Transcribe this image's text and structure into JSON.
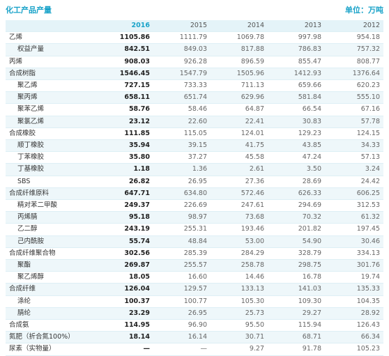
{
  "header": {
    "title": "化工产品产量",
    "unit": "单位：万吨"
  },
  "columns": [
    "2016",
    "2015",
    "2014",
    "2013",
    "2012"
  ],
  "rows": [
    {
      "name": "乙烯",
      "sub": false,
      "values": [
        "1105.86",
        "1111.79",
        "1069.78",
        "997.98",
        "954.18"
      ]
    },
    {
      "name": "权益产量",
      "sub": true,
      "values": [
        "842.51",
        "849.03",
        "817.88",
        "786.83",
        "757.32"
      ]
    },
    {
      "name": "丙烯",
      "sub": false,
      "values": [
        "908.03",
        "926.28",
        "896.59",
        "855.47",
        "808.77"
      ]
    },
    {
      "name": "合成树脂",
      "sub": false,
      "values": [
        "1546.45",
        "1547.79",
        "1505.96",
        "1412.93",
        "1376.64"
      ]
    },
    {
      "name": "聚乙烯",
      "sub": true,
      "values": [
        "727.15",
        "733.33",
        "711.13",
        "659.66",
        "620.23"
      ]
    },
    {
      "name": "聚丙烯",
      "sub": true,
      "values": [
        "658.11",
        "651.74",
        "629.96",
        "581.84",
        "555.10"
      ]
    },
    {
      "name": "聚苯乙烯",
      "sub": true,
      "values": [
        "58.76",
        "58.46",
        "64.87",
        "66.54",
        "67.16"
      ]
    },
    {
      "name": "聚氯乙烯",
      "sub": true,
      "values": [
        "23.12",
        "22.60",
        "22.41",
        "30.83",
        "57.78"
      ]
    },
    {
      "name": "合成橡胶",
      "sub": false,
      "values": [
        "111.85",
        "115.05",
        "124.01",
        "129.23",
        "124.15"
      ]
    },
    {
      "name": "顺丁橡胶",
      "sub": true,
      "values": [
        "35.94",
        "39.15",
        "41.75",
        "43.85",
        "34.33"
      ]
    },
    {
      "name": "丁苯橡胶",
      "sub": true,
      "values": [
        "35.80",
        "37.27",
        "45.58",
        "47.24",
        "57.13"
      ]
    },
    {
      "name": "丁基橡胶",
      "sub": true,
      "values": [
        "1.18",
        "1.36",
        "2.61",
        "3.50",
        "3.24"
      ]
    },
    {
      "name": "SBS",
      "sub": true,
      "values": [
        "26.82",
        "26.95",
        "27.36",
        "28.69",
        "24.42"
      ]
    },
    {
      "name": "合成纤维原料",
      "sub": false,
      "values": [
        "647.71",
        "634.80",
        "572.46",
        "626.33",
        "606.25"
      ]
    },
    {
      "name": "精对苯二甲酸",
      "sub": true,
      "values": [
        "249.37",
        "226.69",
        "247.61",
        "294.69",
        "312.53"
      ]
    },
    {
      "name": "丙烯腈",
      "sub": true,
      "values": [
        "95.18",
        "98.97",
        "73.68",
        "70.32",
        "61.32"
      ]
    },
    {
      "name": "乙二醇",
      "sub": true,
      "values": [
        "243.19",
        "255.31",
        "193.46",
        "201.82",
        "197.45"
      ]
    },
    {
      "name": "己内酰胺",
      "sub": true,
      "values": [
        "55.74",
        "48.84",
        "53.00",
        "54.90",
        "30.46"
      ]
    },
    {
      "name": "合成纤维聚合物",
      "sub": false,
      "values": [
        "302.56",
        "285.39",
        "284.29",
        "328.79",
        "334.13"
      ]
    },
    {
      "name": "聚酯",
      "sub": true,
      "values": [
        "269.87",
        "255.57",
        "258.78",
        "298.75",
        "301.76"
      ]
    },
    {
      "name": "聚乙烯醇",
      "sub": true,
      "values": [
        "18.05",
        "16.60",
        "14.46",
        "16.78",
        "19.74"
      ]
    },
    {
      "name": "合成纤维",
      "sub": false,
      "values": [
        "126.04",
        "129.57",
        "133.13",
        "141.03",
        "135.33"
      ]
    },
    {
      "name": "涤纶",
      "sub": true,
      "values": [
        "100.37",
        "100.77",
        "105.30",
        "109.30",
        "104.35"
      ]
    },
    {
      "name": "腈纶",
      "sub": true,
      "values": [
        "23.29",
        "26.95",
        "25.73",
        "29.27",
        "28.92"
      ]
    },
    {
      "name": "合成氨",
      "sub": false,
      "values": [
        "114.95",
        "96.90",
        "95.50",
        "115.94",
        "126.43"
      ]
    },
    {
      "name": "氮肥（折合氮100%）",
      "sub": false,
      "values": [
        "18.14",
        "16.14",
        "30.71",
        "68.71",
        "66.34"
      ]
    },
    {
      "name": "尿素（实物量）",
      "sub": false,
      "values": [
        "—",
        "—",
        "9.27",
        "91.78",
        "105.23"
      ]
    }
  ]
}
